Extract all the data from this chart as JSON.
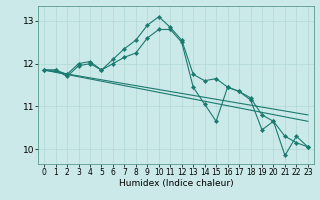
{
  "xlabel": "Humidex (Indice chaleur)",
  "xlim": [
    0,
    23
  ],
  "ylim": [
    9.65,
    13.35
  ],
  "yticks": [
    10,
    11,
    12,
    13
  ],
  "xticks": [
    0,
    1,
    2,
    3,
    4,
    5,
    6,
    7,
    8,
    9,
    10,
    11,
    12,
    13,
    14,
    15,
    16,
    17,
    18,
    19,
    20,
    21,
    22,
    23
  ],
  "bg_color": "#cce9e9",
  "line_color": "#1a7a6e",
  "grid_color": "#b0d8d4",
  "series": [
    {
      "x": [
        0,
        1,
        2,
        3,
        4,
        5,
        6,
        7,
        8,
        9,
        10,
        11,
        12,
        13,
        14,
        15,
        16,
        17,
        18,
        19,
        20,
        21,
        22,
        23
      ],
      "y": [
        11.85,
        11.85,
        11.7,
        11.95,
        12.0,
        11.85,
        12.1,
        12.35,
        12.55,
        12.9,
        13.1,
        12.85,
        12.55,
        11.75,
        11.6,
        11.65,
        11.45,
        11.35,
        11.2,
        10.8,
        10.65,
        10.3,
        10.15,
        10.05
      ],
      "marker": true
    },
    {
      "x": [
        0,
        1,
        2,
        3,
        4,
        5,
        6,
        7,
        8,
        9,
        10,
        11,
        12,
        13,
        14,
        15,
        16,
        17,
        18,
        19,
        20,
        21,
        22,
        23
      ],
      "y": [
        11.85,
        11.85,
        11.75,
        12.0,
        12.05,
        11.85,
        12.0,
        12.15,
        12.25,
        12.6,
        12.8,
        12.8,
        12.5,
        11.45,
        11.05,
        10.65,
        11.45,
        11.35,
        11.15,
        10.45,
        10.65,
        9.85,
        10.3,
        10.05
      ],
      "marker": true
    },
    {
      "x": [
        0,
        23
      ],
      "y": [
        11.85,
        10.8
      ],
      "marker": false
    },
    {
      "x": [
        0,
        23
      ],
      "y": [
        11.85,
        10.65
      ],
      "marker": false
    }
  ]
}
